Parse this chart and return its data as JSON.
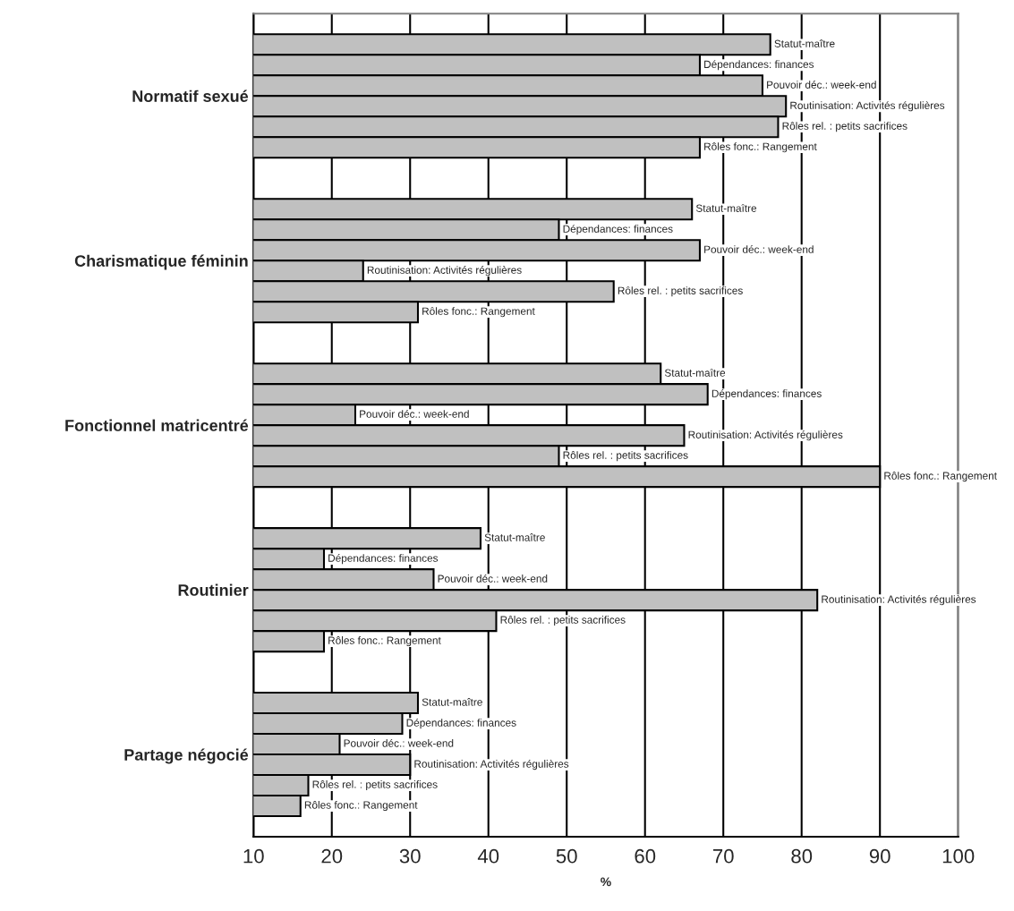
{
  "chart_data": {
    "type": "bar",
    "orientation": "horizontal",
    "xlabel": "%",
    "categories": [
      "Normatif sexué",
      "Charismatique féminin",
      "Fonctionnel matricentré",
      "Routinier",
      "Partage négocié"
    ],
    "series": [
      {
        "name": "Statut-maître",
        "color": "#c0c0c0",
        "values": [
          76,
          66,
          62,
          39,
          31
        ]
      },
      {
        "name": "Dépendances: finances",
        "color": "#c0c0c0",
        "values": [
          67,
          49,
          68,
          19,
          29
        ]
      },
      {
        "name": "Pouvoir déc.: week-end",
        "color": "#c0c0c0",
        "values": [
          75,
          67,
          23,
          33,
          21
        ]
      },
      {
        "name": "Routinisation: Activités régulières",
        "color": "#c0c0c0",
        "values": [
          78,
          24,
          65,
          82,
          30
        ]
      },
      {
        "name": "Rôles rel. : petits sacrifices",
        "color": "#c0c0c0",
        "values": [
          77,
          56,
          49,
          41,
          17
        ]
      },
      {
        "name": "Rôles fonc.: Rangement",
        "color": "#c0c0c0",
        "values": [
          67,
          31,
          90,
          19,
          16
        ]
      }
    ],
    "xlim": [
      10,
      100
    ],
    "xticks": [
      10,
      20,
      30,
      40,
      50,
      60,
      70,
      80,
      90,
      100
    ],
    "grid": "x",
    "legend": false
  }
}
